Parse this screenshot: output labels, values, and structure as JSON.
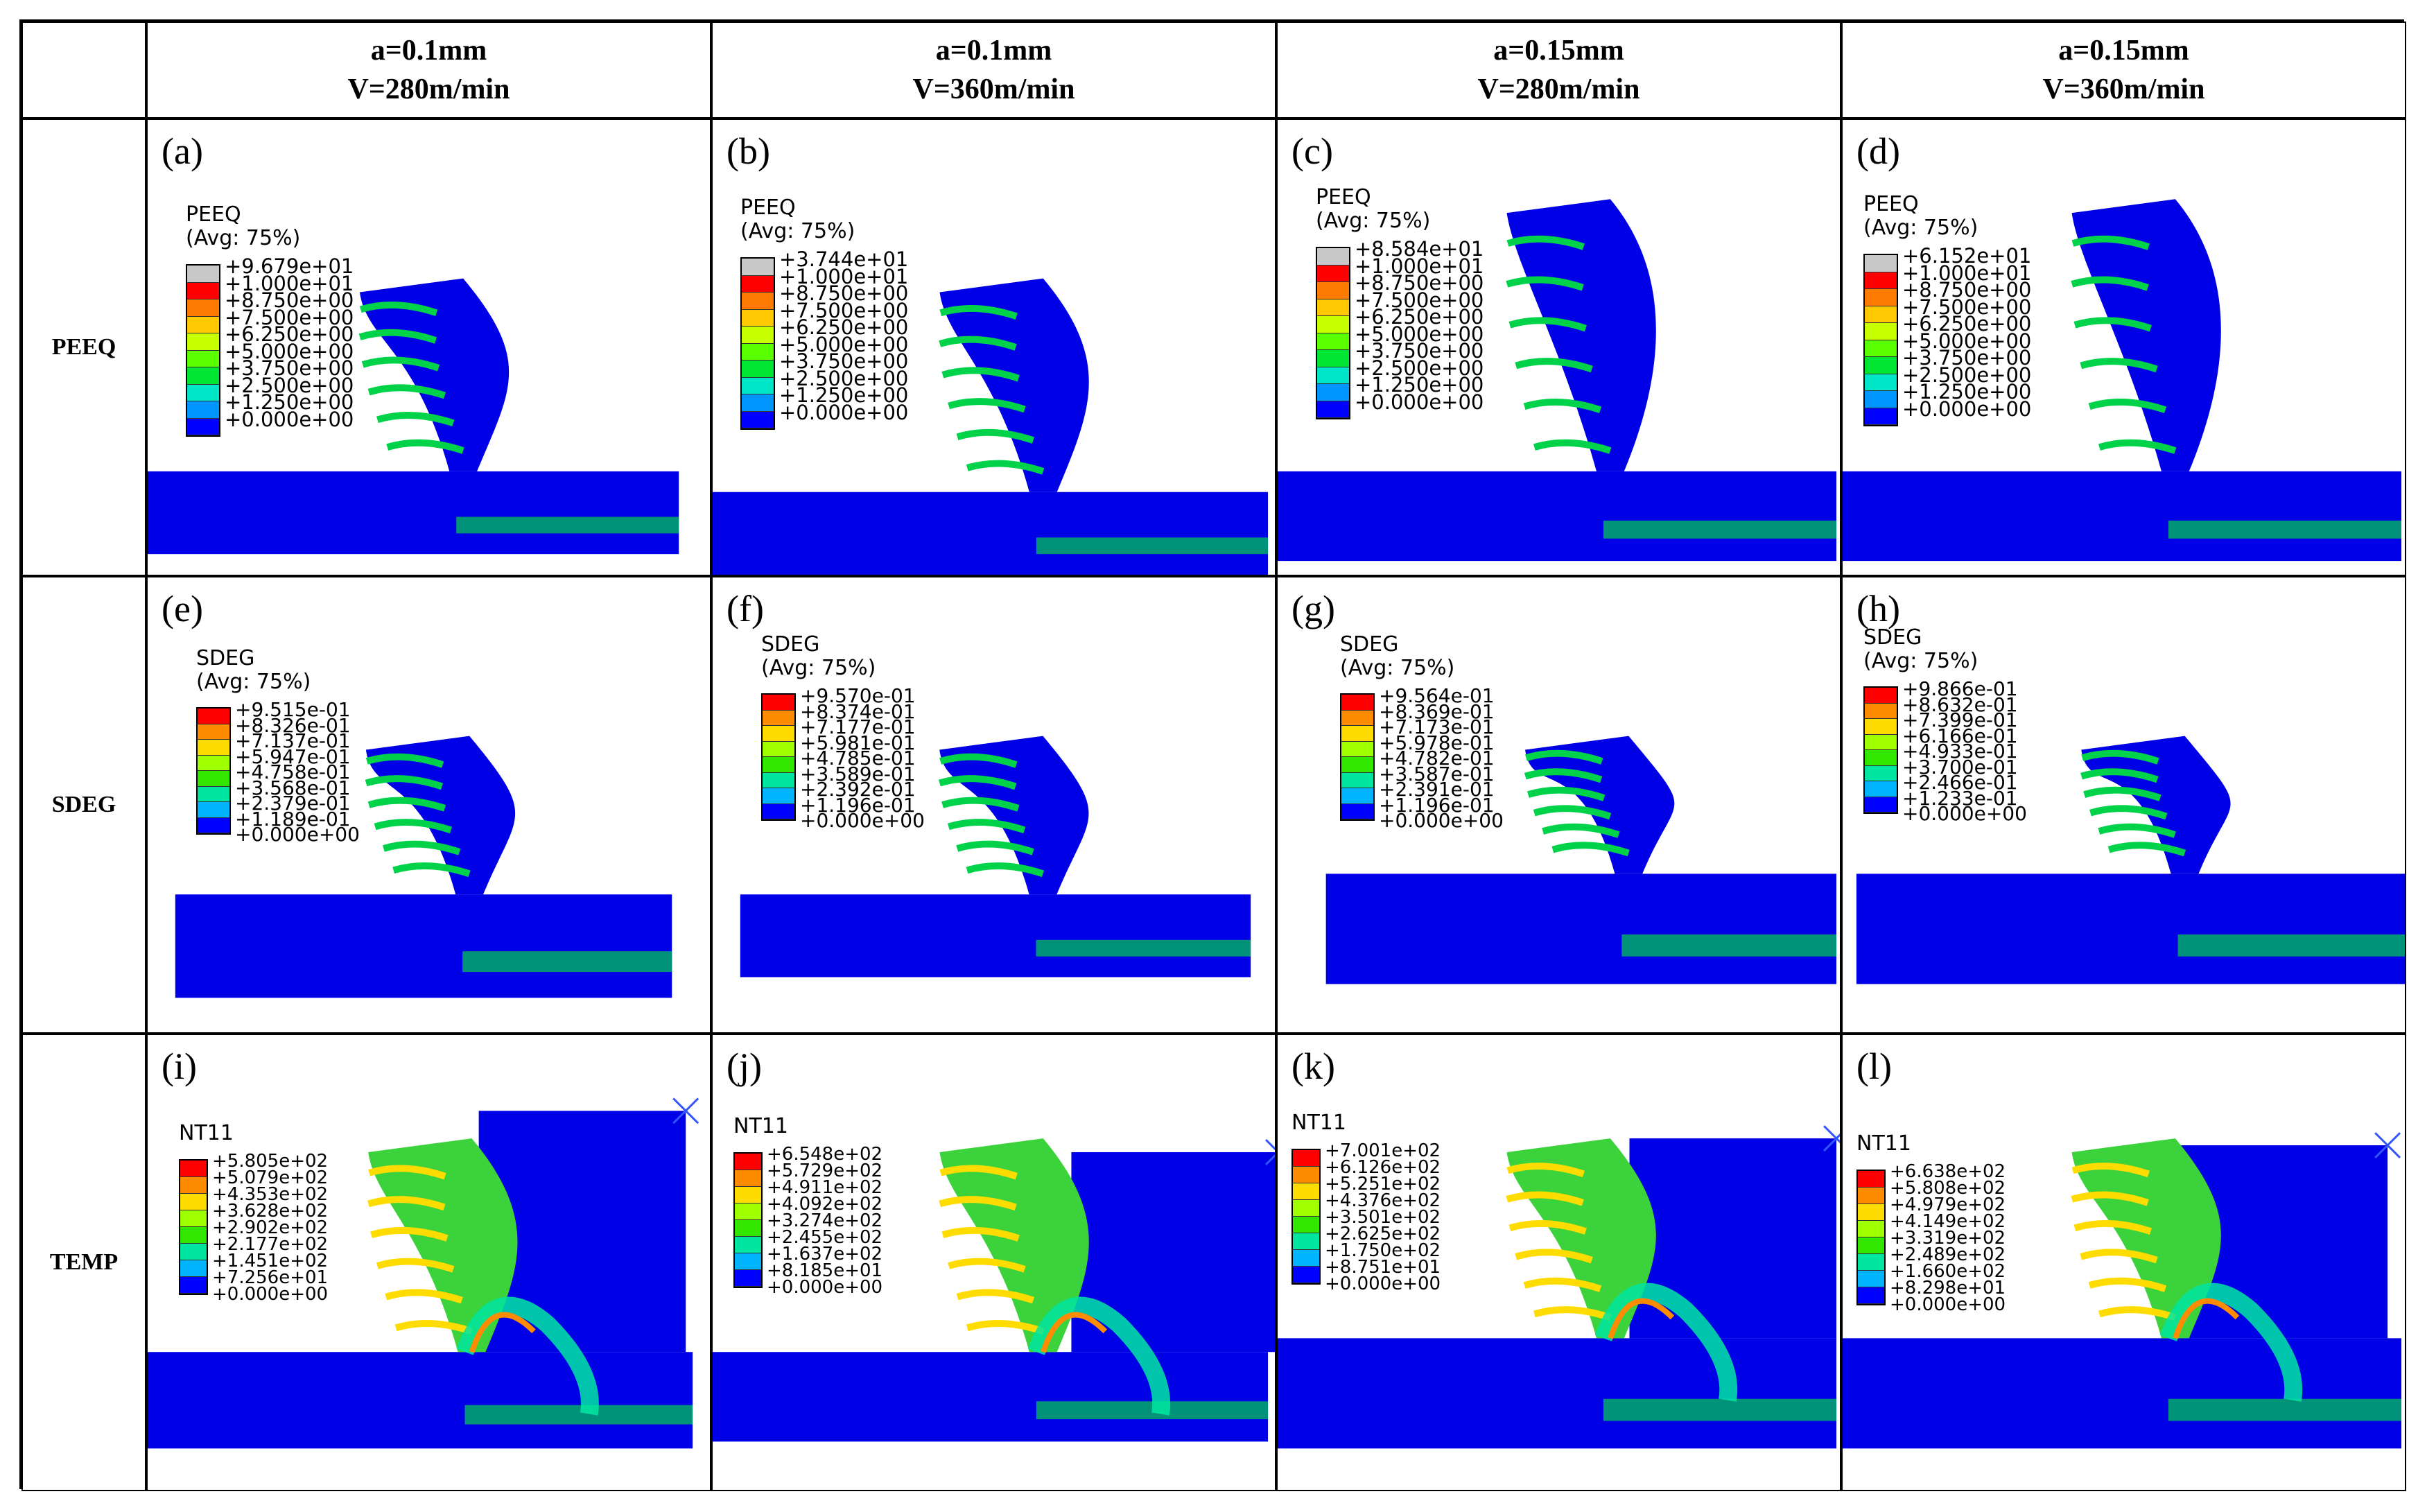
{
  "header": {
    "corner": "",
    "columns": [
      {
        "line1": "a=0.1mm",
        "line2": "V=280m/min"
      },
      {
        "line1": "a=0.1mm",
        "line2": "V=360m/min"
      },
      {
        "line1": "a=0.15mm",
        "line2": "V=280m/min"
      },
      {
        "line1": "a=0.15mm",
        "line2": "V=360m/min"
      }
    ]
  },
  "rows": [
    {
      "label": "PEEQ",
      "panels": [
        {
          "tag": "(a)",
          "title": "PEEQ",
          "avg": "(Avg: 75%)",
          "values": [
            "+9.679e+01",
            "+1.000e+01",
            "+8.750e+00",
            "+7.500e+00",
            "+6.250e+00",
            "+5.000e+00",
            "+3.750e+00",
            "+2.500e+00",
            "+1.250e+00",
            "+0.000e+00"
          ]
        },
        {
          "tag": "(b)",
          "title": "PEEQ",
          "avg": "(Avg: 75%)",
          "values": [
            "+3.744e+01",
            "+1.000e+01",
            "+8.750e+00",
            "+7.500e+00",
            "+6.250e+00",
            "+5.000e+00",
            "+3.750e+00",
            "+2.500e+00",
            "+1.250e+00",
            "+0.000e+00"
          ]
        },
        {
          "tag": "(c)",
          "title": "PEEQ",
          "avg": "(Avg: 75%)",
          "values": [
            "+8.584e+01",
            "+1.000e+01",
            "+8.750e+00",
            "+7.500e+00",
            "+6.250e+00",
            "+5.000e+00",
            "+3.750e+00",
            "+2.500e+00",
            "+1.250e+00",
            "+0.000e+00"
          ]
        },
        {
          "tag": "(d)",
          "title": "PEEQ",
          "avg": "(Avg: 75%)",
          "values": [
            "+6.152e+01",
            "+1.000e+01",
            "+8.750e+00",
            "+7.500e+00",
            "+6.250e+00",
            "+5.000e+00",
            "+3.750e+00",
            "+2.500e+00",
            "+1.250e+00",
            "+0.000e+00"
          ]
        }
      ]
    },
    {
      "label": "SDEG",
      "panels": [
        {
          "tag": "(e)",
          "title": "SDEG",
          "avg": "(Avg: 75%)",
          "values": [
            "+9.515e-01",
            "+8.326e-01",
            "+7.137e-01",
            "+5.947e-01",
            "+4.758e-01",
            "+3.568e-01",
            "+2.379e-01",
            "+1.189e-01",
            "+0.000e+00"
          ]
        },
        {
          "tag": "(f)",
          "title": "SDEG",
          "avg": "(Avg: 75%)",
          "values": [
            "+9.570e-01",
            "+8.374e-01",
            "+7.177e-01",
            "+5.981e-01",
            "+4.785e-01",
            "+3.589e-01",
            "+2.392e-01",
            "+1.196e-01",
            "+0.000e+00"
          ]
        },
        {
          "tag": "(g)",
          "title": "SDEG",
          "avg": "(Avg: 75%)",
          "values": [
            "+9.564e-01",
            "+8.369e-01",
            "+7.173e-01",
            "+5.978e-01",
            "+4.782e-01",
            "+3.587e-01",
            "+2.391e-01",
            "+1.196e-01",
            "+0.000e+00"
          ]
        },
        {
          "tag": "(h)",
          "title": "SDEG",
          "avg": "(Avg: 75%)",
          "values": [
            "+9.866e-01",
            "+8.632e-01",
            "+7.399e-01",
            "+6.166e-01",
            "+4.933e-01",
            "+3.700e-01",
            "+2.466e-01",
            "+1.233e-01",
            "+0.000e+00"
          ]
        }
      ]
    },
    {
      "label": "TEMP",
      "panels": [
        {
          "tag": "(i)",
          "title": "NT11",
          "avg": "",
          "values": [
            "+5.805e+02",
            "+5.079e+02",
            "+4.353e+02",
            "+3.628e+02",
            "+2.902e+02",
            "+2.177e+02",
            "+1.451e+02",
            "+7.256e+01",
            "+0.000e+00"
          ]
        },
        {
          "tag": "(j)",
          "title": "NT11",
          "avg": "",
          "values": [
            "+6.548e+02",
            "+5.729e+02",
            "+4.911e+02",
            "+4.092e+02",
            "+3.274e+02",
            "+2.455e+02",
            "+1.637e+02",
            "+8.185e+01",
            "+0.000e+00"
          ]
        },
        {
          "tag": "(k)",
          "title": "NT11",
          "avg": "",
          "values": [
            "+7.001e+02",
            "+6.126e+02",
            "+5.251e+02",
            "+4.376e+02",
            "+3.501e+02",
            "+2.625e+02",
            "+1.750e+02",
            "+8.751e+01",
            "+0.000e+00"
          ]
        },
        {
          "tag": "(l)",
          "title": "NT11",
          "avg": "",
          "values": [
            "+6.638e+02",
            "+5.808e+02",
            "+4.979e+02",
            "+4.149e+02",
            "+3.319e+02",
            "+2.489e+02",
            "+1.660e+02",
            "+8.298e+01",
            "+0.000e+00"
          ]
        }
      ]
    }
  ],
  "colors": {
    "peeq_scale": [
      "#c8c8c8",
      "#ff0000",
      "#ff7a00",
      "#ffc800",
      "#c8ff00",
      "#5aff00",
      "#00e632",
      "#00e6c8",
      "#0096ff",
      "#0000ff"
    ],
    "sdeg_scale": [
      "#ff0000",
      "#ff8c00",
      "#ffdc00",
      "#a0ff00",
      "#32e600",
      "#00e6a0",
      "#00b4ff",
      "#0000ff"
    ],
    "temp_scale": [
      "#ff0000",
      "#ff8c00",
      "#ffdc00",
      "#a0ff00",
      "#32e600",
      "#00e6a0",
      "#00b4ff",
      "#0000ff"
    ],
    "workpiece": "#0000e6",
    "band": "#00d24a"
  }
}
